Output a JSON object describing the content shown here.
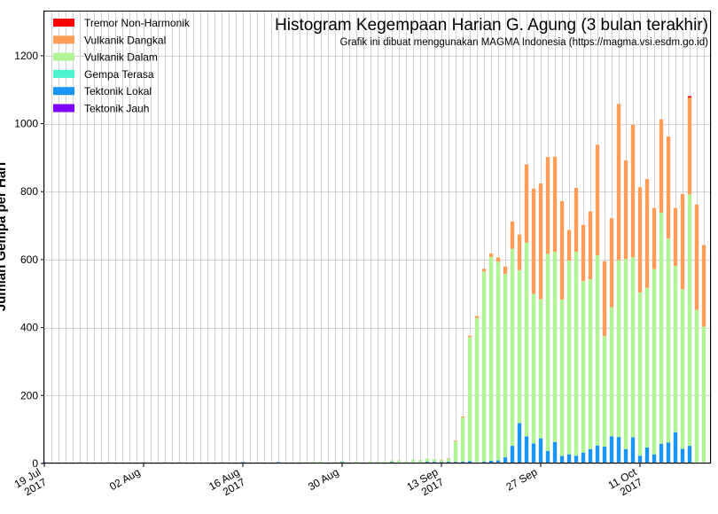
{
  "chart_data": {
    "type": "bar",
    "stacked": true,
    "title": "Histogram Kegempaan Harian G. Agung (3 bulan terakhir)",
    "subtitle": "Grafik ini dibuat menggunakan MAGMA Indonesia (https://magma.vsi.esdm.go.id)",
    "ylabel": "Jumlah Gempa per Hari",
    "xlabel": "",
    "ylim": [
      0,
      1330
    ],
    "yticks": [
      0,
      200,
      400,
      600,
      800,
      1000,
      1200
    ],
    "grid": true,
    "legend_position": "top-left",
    "x_start": "2017-07-19",
    "x_end": "2017-10-21",
    "xticks": [
      {
        "date": "2017-07-19",
        "lines": [
          "19 Jul",
          "2017"
        ]
      },
      {
        "date": "2017-08-02",
        "lines": [
          "02 Aug"
        ]
      },
      {
        "date": "2017-08-16",
        "lines": [
          "16 Aug",
          "2017"
        ]
      },
      {
        "date": "2017-08-30",
        "lines": [
          "30 Aug"
        ]
      },
      {
        "date": "2017-09-13",
        "lines": [
          "13 Sep",
          "2017"
        ]
      },
      {
        "date": "2017-09-27",
        "lines": [
          "27 Sep"
        ]
      },
      {
        "date": "2017-10-11",
        "lines": [
          "11 Oct",
          "2017"
        ]
      }
    ],
    "x": [
      "2017-07-19",
      "2017-07-20",
      "2017-07-21",
      "2017-07-22",
      "2017-07-23",
      "2017-07-24",
      "2017-07-25",
      "2017-07-26",
      "2017-07-27",
      "2017-07-28",
      "2017-07-29",
      "2017-07-30",
      "2017-07-31",
      "2017-08-01",
      "2017-08-02",
      "2017-08-03",
      "2017-08-04",
      "2017-08-05",
      "2017-08-06",
      "2017-08-07",
      "2017-08-08",
      "2017-08-09",
      "2017-08-10",
      "2017-08-11",
      "2017-08-12",
      "2017-08-13",
      "2017-08-14",
      "2017-08-15",
      "2017-08-16",
      "2017-08-17",
      "2017-08-18",
      "2017-08-19",
      "2017-08-20",
      "2017-08-21",
      "2017-08-22",
      "2017-08-23",
      "2017-08-24",
      "2017-08-25",
      "2017-08-26",
      "2017-08-27",
      "2017-08-28",
      "2017-08-29",
      "2017-08-30",
      "2017-08-31",
      "2017-09-01",
      "2017-09-02",
      "2017-09-03",
      "2017-09-04",
      "2017-09-05",
      "2017-09-06",
      "2017-09-07",
      "2017-09-08",
      "2017-09-09",
      "2017-09-10",
      "2017-09-11",
      "2017-09-12",
      "2017-09-13",
      "2017-09-14",
      "2017-09-15",
      "2017-09-16",
      "2017-09-17",
      "2017-09-18",
      "2017-09-19",
      "2017-09-20",
      "2017-09-21",
      "2017-09-22",
      "2017-09-23",
      "2017-09-24",
      "2017-09-25",
      "2017-09-26",
      "2017-09-27",
      "2017-09-28",
      "2017-09-29",
      "2017-09-30",
      "2017-10-01",
      "2017-10-02",
      "2017-10-03",
      "2017-10-04",
      "2017-10-05",
      "2017-10-06",
      "2017-10-07",
      "2017-10-08",
      "2017-10-09",
      "2017-10-10",
      "2017-10-11",
      "2017-10-12",
      "2017-10-13",
      "2017-10-14",
      "2017-10-15",
      "2017-10-16",
      "2017-10-17",
      "2017-10-18",
      "2017-10-19",
      "2017-10-20"
    ],
    "series": [
      {
        "name": "Tektonik Jauh",
        "color": "#8000ff",
        "values": [
          3,
          2,
          1,
          2,
          1,
          3,
          2,
          1,
          2,
          3,
          1,
          2,
          2,
          1,
          3,
          2,
          2,
          3,
          1,
          3,
          2,
          1,
          2,
          2,
          1,
          3,
          2,
          1,
          3,
          2,
          2,
          1,
          2,
          3,
          2,
          2,
          1,
          3,
          2,
          2,
          1,
          3,
          2,
          1,
          2,
          2,
          3,
          2,
          1,
          2,
          2,
          3,
          1,
          2,
          2,
          3,
          2,
          2,
          3,
          2,
          2,
          1,
          2,
          2,
          3,
          2,
          2,
          1,
          2,
          3,
          2,
          2,
          3,
          2,
          2,
          3,
          2,
          2,
          3,
          2,
          2,
          3,
          2,
          2,
          3,
          2,
          2,
          3,
          2,
          2,
          3,
          2,
          2,
          3
        ]
      },
      {
        "name": "Tektonik Lokal",
        "color": "#1996f3",
        "values": [
          0,
          0,
          0,
          0,
          0,
          0,
          0,
          0,
          0,
          0,
          0,
          0,
          0,
          0,
          0,
          0,
          0,
          0,
          0,
          0,
          0,
          0,
          0,
          0,
          0,
          0,
          0,
          0,
          1,
          0,
          1,
          0,
          0,
          1,
          0,
          0,
          2,
          0,
          1,
          0,
          0,
          0,
          2,
          0,
          1,
          0,
          0,
          1,
          0,
          2,
          1,
          0,
          2,
          1,
          3,
          2,
          2,
          3,
          2,
          3,
          5,
          2,
          3,
          6,
          6,
          16,
          50,
          118,
          78,
          56,
          72,
          35,
          60,
          20,
          25,
          20,
          30,
          40,
          50,
          48,
          78,
          75,
          40,
          75,
          20,
          45,
          25,
          55,
          60,
          90,
          40,
          50,
          0,
          0
        ]
      },
      {
        "name": "Gempa Terasa",
        "color": "#4df3ce",
        "values": [
          0,
          0,
          0,
          0,
          0,
          0,
          0,
          0,
          0,
          0,
          0,
          0,
          0,
          0,
          0,
          0,
          0,
          0,
          0,
          0,
          0,
          0,
          0,
          0,
          0,
          0,
          0,
          0,
          0,
          0,
          0,
          0,
          0,
          0,
          0,
          0,
          0,
          0,
          0,
          0,
          0,
          0,
          0,
          0,
          0,
          0,
          0,
          0,
          0,
          0,
          0,
          0,
          0,
          0,
          0,
          0,
          0,
          0,
          0,
          0,
          0,
          0,
          0,
          0,
          0,
          0,
          0,
          0,
          0,
          0,
          0,
          0,
          0,
          0,
          0,
          0,
          0,
          0,
          0,
          0,
          0,
          0,
          0,
          0,
          0,
          0,
          0,
          0,
          0,
          0,
          0,
          0,
          0,
          0
        ]
      },
      {
        "name": "Vulkanik Dalam",
        "color": "#b2f396",
        "values": [
          0,
          0,
          0,
          0,
          0,
          0,
          0,
          0,
          0,
          0,
          0,
          0,
          0,
          0,
          0,
          0,
          0,
          0,
          0,
          0,
          0,
          0,
          0,
          0,
          0,
          0,
          0,
          0,
          0,
          0,
          0,
          0,
          0,
          0,
          0,
          0,
          2,
          1,
          2,
          3,
          2,
          1,
          3,
          2,
          2,
          1,
          3,
          2,
          4,
          5,
          6,
          3,
          8,
          7,
          10,
          8,
          6,
          10,
          60,
          130,
          365,
          425,
          560,
          600,
          585,
          540,
          580,
          450,
          570,
          440,
          410,
          580,
          560,
          460,
          570,
          600,
          505,
          500,
          560,
          325,
          380,
          520,
          560,
          530,
          480,
          470,
          545,
          680,
          600,
          490,
          470,
          740,
          450,
          400
        ]
      },
      {
        "name": "Vulkanik Dangkal",
        "color": "#ff9d57",
        "values": [
          0,
          0,
          0,
          0,
          0,
          0,
          0,
          0,
          0,
          0,
          0,
          0,
          0,
          0,
          0,
          0,
          0,
          0,
          0,
          0,
          0,
          0,
          0,
          0,
          0,
          0,
          0,
          0,
          0,
          0,
          0,
          0,
          0,
          0,
          0,
          0,
          0,
          0,
          0,
          0,
          0,
          0,
          0,
          0,
          0,
          0,
          0,
          0,
          0,
          0,
          0,
          0,
          0,
          0,
          0,
          0,
          1,
          1,
          2,
          3,
          4,
          6,
          8,
          10,
          12,
          22,
          80,
          105,
          230,
          310,
          340,
          285,
          280,
          290,
          90,
          188,
          165,
          200,
          325,
          220,
          262,
          460,
          290,
          390,
          310,
          320,
          180,
          275,
          300,
          170,
          280,
          285,
          310,
          240
        ]
      },
      {
        "name": "Tremor Non-Harmonik",
        "color": "#ff0000",
        "values": [
          0,
          0,
          0,
          0,
          0,
          0,
          0,
          0,
          0,
          0,
          0,
          0,
          0,
          0,
          0,
          0,
          0,
          0,
          0,
          0,
          0,
          0,
          0,
          0,
          0,
          0,
          0,
          0,
          0,
          0,
          0,
          0,
          0,
          0,
          0,
          0,
          0,
          0,
          0,
          0,
          0,
          0,
          0,
          0,
          0,
          0,
          0,
          0,
          0,
          0,
          0,
          0,
          0,
          0,
          0,
          0,
          0,
          0,
          0,
          0,
          0,
          0,
          0,
          0,
          0,
          0,
          0,
          0,
          0,
          0,
          0,
          0,
          0,
          0,
          0,
          0,
          0,
          0,
          0,
          0,
          0,
          0,
          0,
          0,
          0,
          0,
          0,
          0,
          0,
          0,
          0,
          4,
          0,
          0
        ]
      }
    ],
    "legend_order": [
      "Tremor Non-Harmonik",
      "Vulkanik Dangkal",
      "Vulkanik Dalam",
      "Gempa Terasa",
      "Tektonik Lokal",
      "Tektonik Jauh"
    ]
  }
}
